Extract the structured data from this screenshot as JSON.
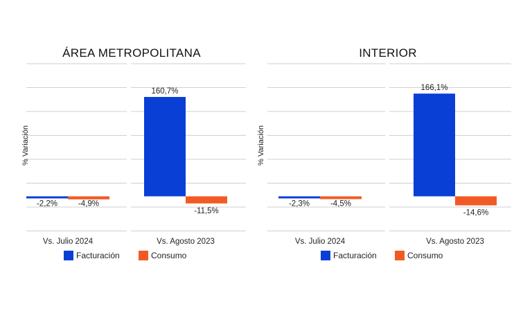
{
  "chart_data": [
    {
      "type": "bar",
      "title": "ÁREA METROPOLITANA",
      "ylabel": "% Variación",
      "categories": [
        "Vs. Julio 2024",
        "Vs. Agosto 2023"
      ],
      "series": [
        {
          "name": "Facturación",
          "values": [
            -2.2,
            160.7
          ],
          "labels": [
            "-2,2%",
            "160,7%"
          ]
        },
        {
          "name": "Consumo",
          "values": [
            -4.9,
            -11.5
          ],
          "labels": [
            "-4,9%",
            "-11,5%"
          ]
        }
      ],
      "ylim": [
        -50,
        200
      ],
      "grid": true
    },
    {
      "type": "bar",
      "title": "INTERIOR",
      "ylabel": "% Variación",
      "categories": [
        "Vs. Julio 2024",
        "Vs. Agosto 2023"
      ],
      "series": [
        {
          "name": "Facturación",
          "values": [
            -2.3,
            166.1
          ],
          "labels": [
            "-2,3%",
            "166,1%"
          ]
        },
        {
          "name": "Consumo",
          "values": [
            -4.5,
            -14.6
          ],
          "labels": [
            "-4,5%",
            "-14,6%"
          ]
        }
      ],
      "ylim": [
        -50,
        200
      ],
      "grid": true
    }
  ],
  "legend": [
    {
      "name": "Facturación",
      "color": "#0a3fd6"
    },
    {
      "name": "Consumo",
      "color": "#f25a24"
    }
  ]
}
